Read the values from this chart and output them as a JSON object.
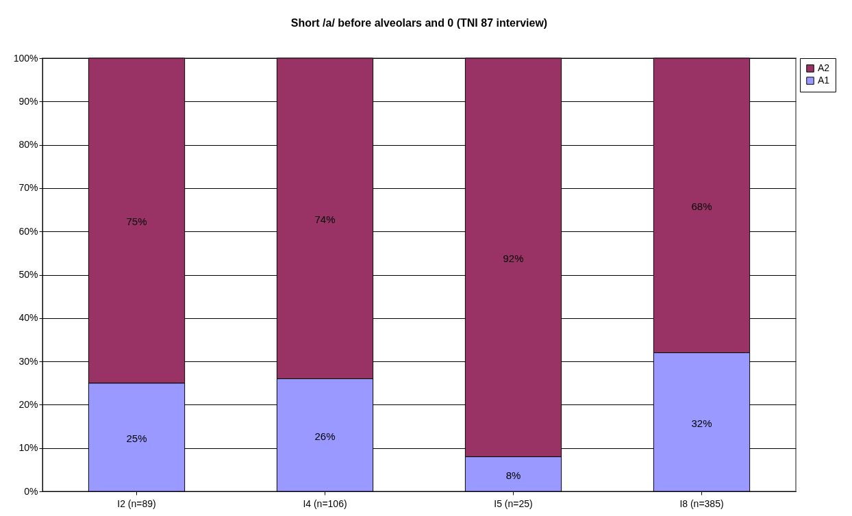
{
  "chart_data": {
    "type": "bar",
    "title": "Short /a/ before alveolars and 0 (TNI 87 interview)",
    "categories": [
      "I2 (n=89)",
      "I4 (n=106)",
      "I5 (n=25)",
      "I8 (n=385)"
    ],
    "stacked": true,
    "series": [
      {
        "name": "A1",
        "color": "#9999ff",
        "values": [
          25,
          26,
          8,
          32
        ],
        "value_labels": [
          "25%",
          "26%",
          "8%",
          "32%"
        ]
      },
      {
        "name": "A2",
        "color": "#993366",
        "values": [
          75,
          74,
          92,
          68
        ],
        "value_labels": [
          "75%",
          "74%",
          "92%",
          "68%"
        ]
      }
    ],
    "ylim": [
      0,
      100
    ],
    "yticks": [
      {
        "value": 0,
        "label": "0%"
      },
      {
        "value": 10,
        "label": "10%"
      },
      {
        "value": 20,
        "label": "20%"
      },
      {
        "value": 30,
        "label": "30%"
      },
      {
        "value": 40,
        "label": "40%"
      },
      {
        "value": 50,
        "label": "50%"
      },
      {
        "value": 60,
        "label": "60%"
      },
      {
        "value": 70,
        "label": "70%"
      },
      {
        "value": 80,
        "label": "80%"
      },
      {
        "value": 90,
        "label": "90%"
      },
      {
        "value": 100,
        "label": "100%"
      }
    ],
    "grid": "y",
    "legend": "right"
  }
}
